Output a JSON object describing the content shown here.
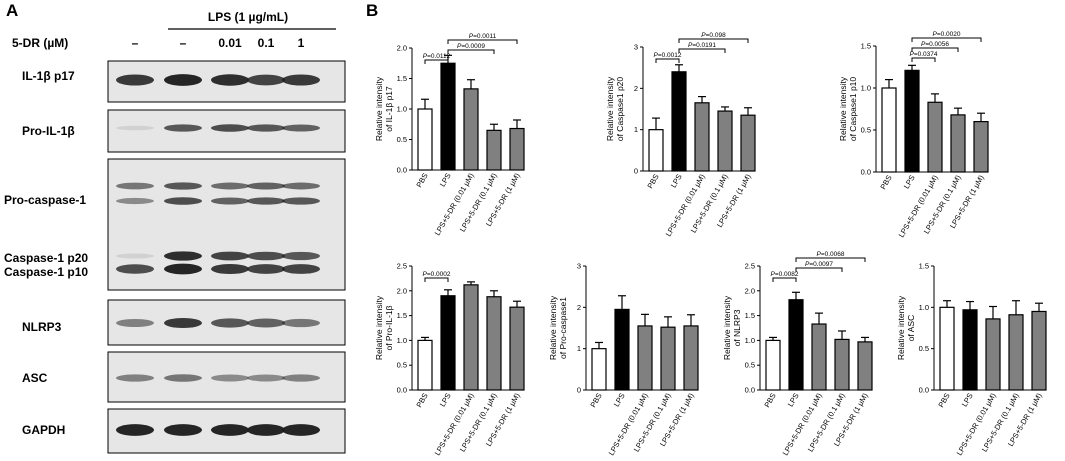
{
  "figure": {
    "panel_a_letter": "A",
    "panel_b_letter": "B"
  },
  "blot": {
    "treatment_header": "LPS (1 µg/mL)",
    "dose_header": "5-DR (µM)",
    "lane_labels": [
      "–",
      "–",
      "0.01",
      "0.1",
      "1"
    ],
    "rows": [
      {
        "label": "IL-1β p17"
      },
      {
        "label": "Pro-IL-1β"
      },
      {
        "label": "Pro-caspase-1"
      },
      {
        "label": "Caspase-1 p20"
      },
      {
        "label": "Caspase-1 p10"
      },
      {
        "label": "NLRP3"
      },
      {
        "label": "ASC"
      },
      {
        "label": "GAPDH"
      }
    ],
    "band_intensity": {
      "il1b_p17": [
        0.85,
        0.95,
        0.9,
        0.8,
        0.85
      ],
      "pro_il1b": [
        0.1,
        0.7,
        0.75,
        0.7,
        0.65
      ],
      "pro_caspase1_upper": [
        0.55,
        0.7,
        0.6,
        0.65,
        0.6
      ],
      "pro_caspase1_lower": [
        0.45,
        0.75,
        0.65,
        0.7,
        0.7
      ],
      "caspase1_p20": [
        0.1,
        0.9,
        0.8,
        0.75,
        0.7
      ],
      "caspase1_p10": [
        0.75,
        0.95,
        0.85,
        0.8,
        0.8
      ],
      "nlrp3": [
        0.5,
        0.85,
        0.7,
        0.65,
        0.55
      ],
      "asc": [
        0.5,
        0.55,
        0.45,
        0.45,
        0.5
      ],
      "gapdh": [
        0.95,
        0.95,
        0.95,
        0.95,
        0.95
      ]
    }
  },
  "chart_data": [
    {
      "type": "bar",
      "ylabel_lines": [
        "Relative intensity",
        "of IL-1β p17"
      ],
      "categories": [
        "PBS",
        "LPS",
        "LPS+5-DR (0.01 µM)",
        "LPS+5-DR (0.1 µM)",
        "LPS+5-DR (1 µM)"
      ],
      "values": [
        1.0,
        1.75,
        1.33,
        0.65,
        0.68
      ],
      "errors": [
        0.16,
        0.13,
        0.15,
        0.1,
        0.14
      ],
      "ylim": [
        0,
        2.0
      ],
      "yticks": [
        "0.0",
        "0.5",
        "1.0",
        "1.5",
        "2.0"
      ],
      "comparisons": [
        {
          "from": 0,
          "to": 1,
          "label_prefix": "P",
          "label_value": "=0.0112"
        },
        {
          "from": 1,
          "to": 3,
          "label_prefix": "P",
          "label_value": "=0.0009"
        },
        {
          "from": 1,
          "to": 4,
          "label_prefix": "P",
          "label_value": "=0.0011"
        }
      ]
    },
    {
      "type": "bar",
      "ylabel_lines": [
        "Relative intensity",
        "of Caspase1 p20"
      ],
      "categories": [
        "PBS",
        "LPS",
        "LPS+5-DR (0.01 µM)",
        "LPS+5-DR (0.1 µM)",
        "LPS+5-DR (1 µM)"
      ],
      "values": [
        1.0,
        2.4,
        1.65,
        1.45,
        1.35
      ],
      "errors": [
        0.28,
        0.17,
        0.15,
        0.1,
        0.18
      ],
      "ylim": [
        0,
        3
      ],
      "yticks": [
        "0",
        "1",
        "2",
        "3"
      ],
      "comparisons": [
        {
          "from": 0,
          "to": 1,
          "label_prefix": "P",
          "label_value": "=0.0012"
        },
        {
          "from": 1,
          "to": 3,
          "label_prefix": "P",
          "label_value": "=0.0191"
        },
        {
          "from": 1,
          "to": 4,
          "label_prefix": "P",
          "label_value": "=0.098"
        }
      ]
    },
    {
      "type": "bar",
      "ylabel_lines": [
        "Relative intensity",
        "of Caspase1 p10"
      ],
      "categories": [
        "PBS",
        "LPS",
        "LPS+5-DR (0.01 µM)",
        "LPS+5-DR (0.1 µM)",
        "LPS+5-DR (1 µM)"
      ],
      "values": [
        1.0,
        1.21,
        0.83,
        0.68,
        0.6
      ],
      "errors": [
        0.1,
        0.06,
        0.1,
        0.08,
        0.1
      ],
      "ylim": [
        0,
        1.5
      ],
      "yticks": [
        "0.0",
        "0.5",
        "1.0",
        "1.5"
      ],
      "comparisons": [
        {
          "from": 1,
          "to": 2,
          "label_prefix": "P",
          "label_value": "=0.0374"
        },
        {
          "from": 1,
          "to": 3,
          "label_prefix": "P",
          "label_value": "=0.0056"
        },
        {
          "from": 1,
          "to": 4,
          "label_prefix": "P",
          "label_value": "=0.0020"
        }
      ]
    },
    {
      "type": "bar",
      "ylabel_lines": [
        "Relative intensity",
        "of Pro-IL-1β"
      ],
      "categories": [
        "PBS",
        "LPS",
        "LPS+5-DR (0.01 µM)",
        "LPS+5-DR (0.1 µM)",
        "LPS+5-DR (1 µM)"
      ],
      "values": [
        1.0,
        1.9,
        2.12,
        1.88,
        1.67
      ],
      "errors": [
        0.06,
        0.12,
        0.06,
        0.12,
        0.12
      ],
      "ylim": [
        0,
        2.5
      ],
      "yticks": [
        "0.0",
        "0.5",
        "1.0",
        "1.5",
        "2.0",
        "2.5"
      ],
      "comparisons": [
        {
          "from": 0,
          "to": 1,
          "label_prefix": "P",
          "label_value": "=0.0002"
        }
      ]
    },
    {
      "type": "bar",
      "ylabel_lines": [
        "Relative intensity",
        "of Pro-caspase1"
      ],
      "categories": [
        "PBS",
        "LPS",
        "LPS+5-DR (0.01 µM)",
        "LPS+5-DR (0.1 µM)",
        "LPS+5-DR (1 µM)"
      ],
      "values": [
        1.0,
        1.95,
        1.55,
        1.52,
        1.55
      ],
      "errors": [
        0.15,
        0.33,
        0.28,
        0.25,
        0.27
      ],
      "ylim": [
        0,
        3
      ],
      "yticks": [
        "0",
        "1",
        "2",
        "3"
      ],
      "comparisons": []
    },
    {
      "type": "bar",
      "ylabel_lines": [
        "Relative intensity",
        "of NLRP3"
      ],
      "categories": [
        "PBS",
        "LPS",
        "LPS+5-DR (0.01 µM)",
        "LPS+5-DR (0.1 µM)",
        "LPS+5-DR (1 µM)"
      ],
      "values": [
        1.0,
        1.82,
        1.33,
        1.02,
        0.97
      ],
      "errors": [
        0.06,
        0.15,
        0.22,
        0.17,
        0.09
      ],
      "ylim": [
        0,
        2.5
      ],
      "yticks": [
        "0.0",
        "0.5",
        "1.0",
        "1.5",
        "2.0",
        "2.5"
      ],
      "comparisons": [
        {
          "from": 0,
          "to": 1,
          "label_prefix": "P",
          "label_value": "=0.0082"
        },
        {
          "from": 1,
          "to": 3,
          "label_prefix": "P",
          "label_value": "=0.0097"
        },
        {
          "from": 1,
          "to": 4,
          "label_prefix": "P",
          "label_value": "=0.0068"
        }
      ]
    },
    {
      "type": "bar",
      "ylabel_lines": [
        "Relative intensity",
        "of ASC"
      ],
      "categories": [
        "PBS",
        "LPS",
        "LPS+5-DR (0.01 µM)",
        "LPS+5-DR (0.1 µM)",
        "LPS+5-DR (1 µM)"
      ],
      "values": [
        1.0,
        0.97,
        0.86,
        0.91,
        0.95
      ],
      "errors": [
        0.08,
        0.1,
        0.15,
        0.17,
        0.1
      ],
      "ylim": [
        0,
        1.5
      ],
      "yticks": [
        "0.0",
        "0.5",
        "1.0",
        "1.5"
      ],
      "comparisons": []
    }
  ],
  "colors": {
    "pbs_fill": "#ffffff",
    "lps_fill": "#000000",
    "treat_fill": "#808080",
    "blot_bg": "#e6e6e6",
    "band": "#1a1a1a"
  }
}
